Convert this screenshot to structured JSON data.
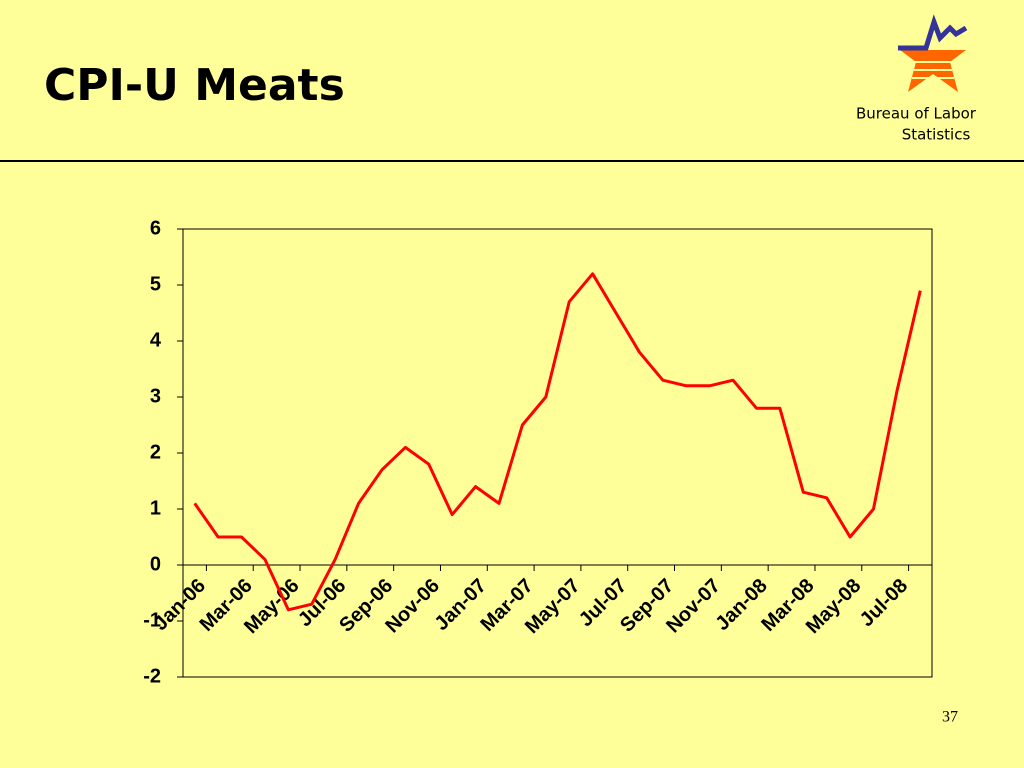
{
  "header": {
    "title": "CPI-U Meats",
    "logo_text": [
      "Bureau of Labor",
      "Statistics"
    ]
  },
  "page_number": "37",
  "chart_data": {
    "type": "line",
    "categories": [
      "Jan-06",
      null,
      "Mar-06",
      null,
      "May-06",
      null,
      "Jul-06",
      null,
      "Sep-06",
      null,
      "Nov-06",
      null,
      "Jan-07",
      null,
      "Mar-07",
      null,
      "May-07",
      null,
      "Jul-07",
      null,
      "Sep-07",
      null,
      "Nov-07",
      null,
      "Jan-08",
      null,
      "Mar-08",
      null,
      "May-08",
      null,
      "Jul-08",
      null
    ],
    "series": [
      {
        "color": "#ff0000",
        "values": [
          1.1,
          0.5,
          0.5,
          0.1,
          -0.8,
          -0.7,
          0.1,
          1.1,
          1.7,
          2.1,
          1.8,
          0.9,
          1.4,
          1.1,
          2.5,
          3.0,
          4.7,
          5.2,
          4.5,
          3.8,
          3.3,
          3.2,
          3.2,
          3.3,
          2.8,
          2.8,
          1.3,
          1.2,
          0.5,
          1.0,
          3.1,
          4.9
        ]
      }
    ],
    "ylim": [
      -2,
      6
    ],
    "yticks": [
      -2,
      -1,
      0,
      1,
      2,
      3,
      4,
      5,
      6
    ],
    "grid": false
  }
}
